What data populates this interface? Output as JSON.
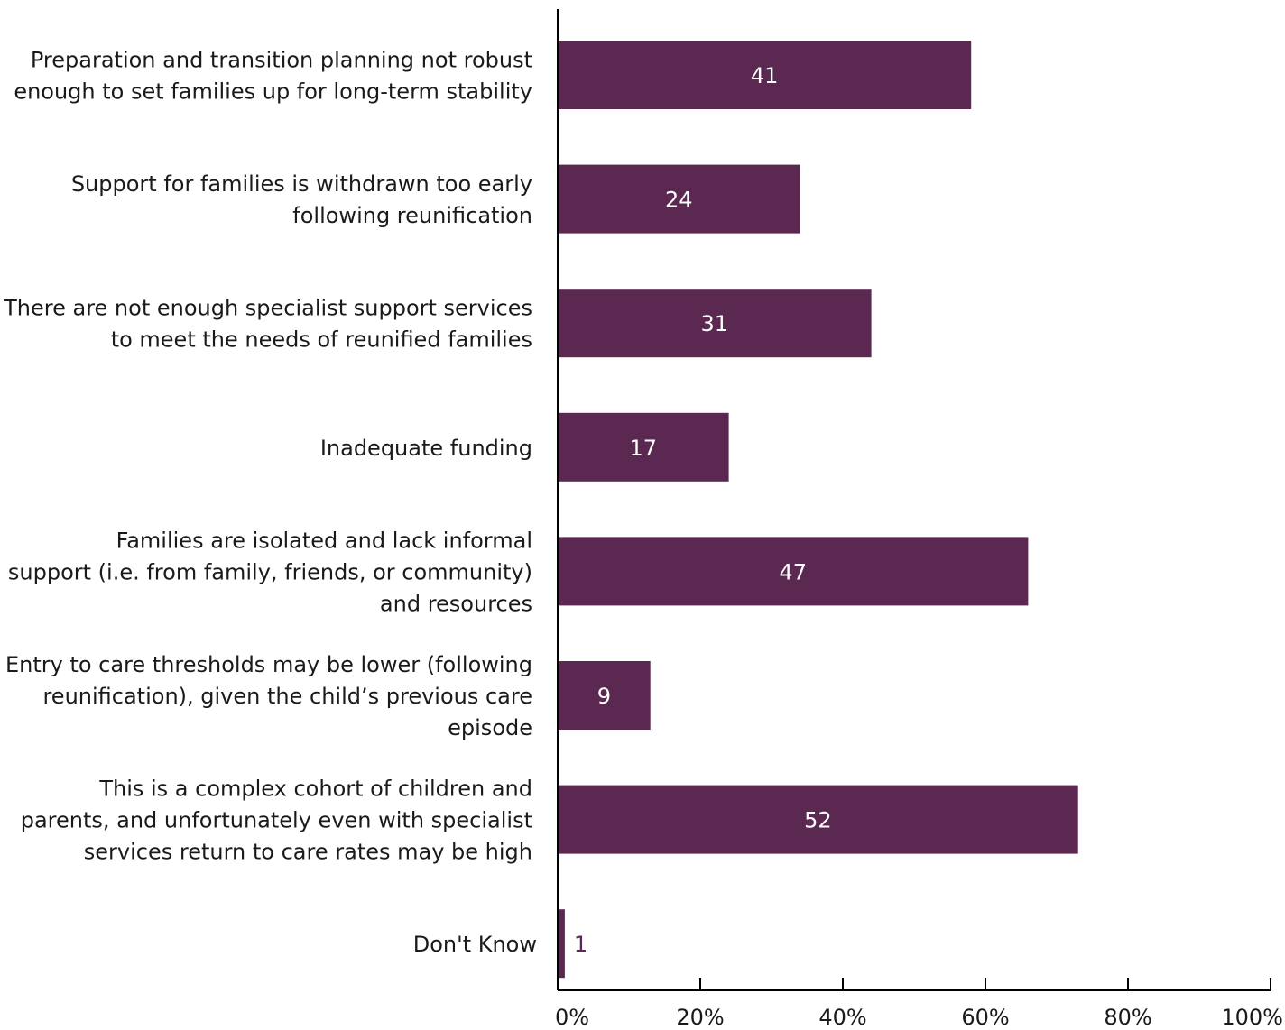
{
  "chart_data": {
    "type": "bar",
    "orientation": "horizontal",
    "title": "",
    "xlabel": "",
    "ylabel": "",
    "xlim": [
      0,
      100
    ],
    "x_ticks": [
      0,
      20,
      40,
      60,
      80,
      100
    ],
    "x_tick_labels": [
      "0%",
      "20%",
      "40%",
      "60%",
      "80%",
      "100%"
    ],
    "grid": false,
    "legend": "none",
    "bar_color": "#5a2851",
    "inside_label_color": "#ffffff",
    "outside_label_color": "#5a2851",
    "categories": [
      [
        "Preparation and transition planning not robust",
        "enough to set families up for long-term stability"
      ],
      [
        "Support for families is withdrawn too early",
        "following reunification"
      ],
      [
        "There are not enough specialist support services",
        "to meet the needs of reunified families"
      ],
      [
        "Inadequate funding"
      ],
      [
        "Families are isolated and lack informal",
        "support (i.e. from family, friends, or community)",
        "and resources"
      ],
      [
        "Entry to care thresholds may be lower (following",
        "reunification), given the child’s previous care",
        "episode"
      ],
      [
        "This is a complex cohort of children and",
        "parents, and unfortunately even with specialist",
        "services return to care rates may be high"
      ],
      [
        "Don't Know"
      ]
    ],
    "values": [
      58,
      34,
      44,
      24,
      66,
      13,
      73,
      1
    ],
    "data_labels": [
      "41",
      "24",
      "31",
      "17",
      "47",
      "9",
      "52",
      "1"
    ]
  }
}
